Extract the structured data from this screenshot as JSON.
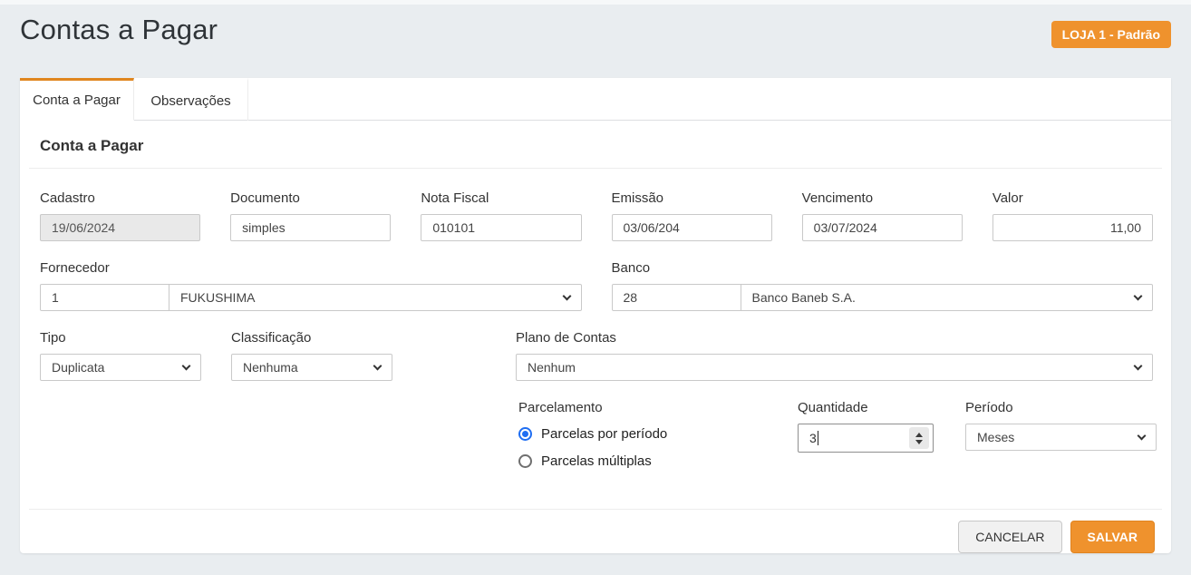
{
  "page": {
    "title": "Contas a Pagar",
    "store_badge": "LOJA 1 - Padrão"
  },
  "tabs": [
    {
      "label": "Conta a Pagar",
      "active": true
    },
    {
      "label": "Observações",
      "active": false
    }
  ],
  "section": {
    "heading": "Conta a Pagar"
  },
  "fields": {
    "cadastro": {
      "label": "Cadastro",
      "value": "19/06/2024",
      "disabled": true
    },
    "documento": {
      "label": "Documento",
      "value": "simples"
    },
    "nota_fiscal": {
      "label": "Nota Fiscal",
      "value": "010101"
    },
    "emissao": {
      "label": "Emissão",
      "value": "03/06/204"
    },
    "vencimento": {
      "label": "Vencimento",
      "value": "03/07/2024"
    },
    "valor": {
      "label": "Valor",
      "value": "11,00"
    },
    "fornecedor": {
      "label": "Fornecedor",
      "code": "1",
      "name": "FUKUSHIMA"
    },
    "banco": {
      "label": "Banco",
      "code": "28",
      "name": "Banco Baneb S.A."
    },
    "tipo": {
      "label": "Tipo",
      "value": "Duplicata"
    },
    "classificacao": {
      "label": "Classificação",
      "value": "Nenhuma"
    },
    "plano_de_contas": {
      "label": "Plano de Contas",
      "value": "Nenhum"
    },
    "parcelamento": {
      "label": "Parcelamento",
      "options": [
        {
          "label": "Parcelas por período",
          "selected": true
        },
        {
          "label": "Parcelas múltiplas",
          "selected": false
        }
      ]
    },
    "quantidade": {
      "label": "Quantidade",
      "value": "3"
    },
    "periodo": {
      "label": "Período",
      "value": "Meses"
    }
  },
  "actions": {
    "cancel": "CANCELAR",
    "save": "SALVAR"
  },
  "colors": {
    "accent_orange": "#ef922d",
    "radio_blue": "#1f6ef2",
    "page_background": "#e9edf0",
    "disabled_input_background": "#e9e9e9"
  }
}
